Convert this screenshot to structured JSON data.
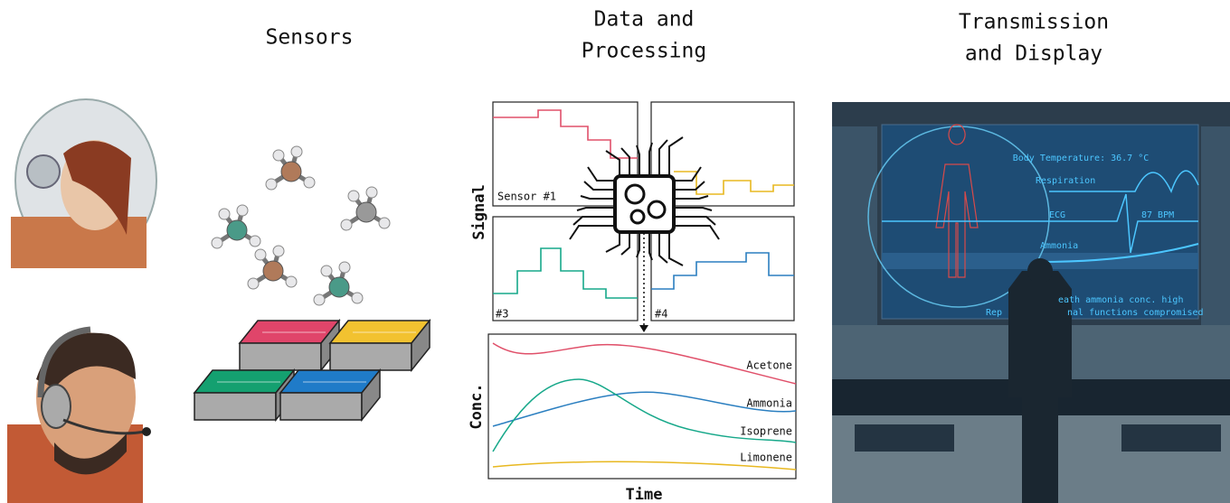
{
  "titles": {
    "sensors": "Sensors",
    "processing_1": "Data and",
    "processing_2": "Processing",
    "display_1": "Transmission",
    "display_2": "and Display"
  },
  "signal_panel": {
    "axis_label": "Signal",
    "sensor_1": "Sensor #1",
    "sensor_3": "#3",
    "sensor_4": "#4"
  },
  "concentration_panel": {
    "axis_label": "Conc.",
    "x_label": "Time",
    "compounds": [
      "Acetone",
      "Ammonia",
      "Isoprene",
      "Limonene"
    ]
  },
  "screen": {
    "temperature": "Body Temperature: 36.7 °C",
    "respiration": "Respiration",
    "ecg": "ECG",
    "heart_rate": "87 BPM",
    "ammonia": "Ammonia",
    "alert_1": "eath ammonia conc. high",
    "alert_2_start": "Rep",
    "alert_2_end": "nal functions compromised"
  }
}
